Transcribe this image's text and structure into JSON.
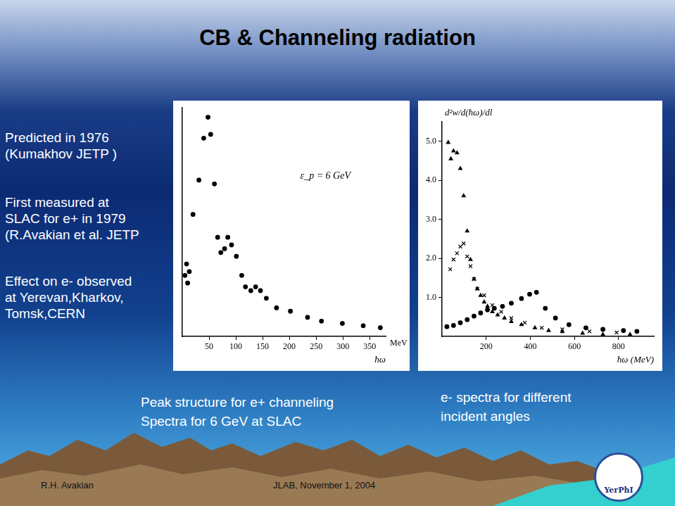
{
  "slide": {
    "title": "CB & Channeling radiation",
    "notes": [
      [
        "Predicted in 1976",
        "(Kumakhov JETP )"
      ],
      [
        "First measured at",
        "SLAC for e+ in 1979",
        "(R.Avakian et al. JETP"
      ],
      [
        "Effect on e- observed",
        "at Yerevan,Kharkov,",
        "Tomsk,CERN"
      ]
    ],
    "captions": [
      [
        "Peak structure for e+ channeling",
        "Spectra for 6 GeV at SLAC"
      ],
      [
        "e- spectra for different",
        "incident angles"
      ]
    ],
    "footer": {
      "author": "R.H. Avakian",
      "event": "JLAB, November 1, 2004",
      "logo": "YerPhI"
    }
  },
  "chart_data": [
    {
      "type": "scatter",
      "xlabel": "ħω",
      "annotations": [
        "ε_p = 6 GeV",
        "MeV"
      ],
      "series": [
        {
          "color": "#000000",
          "marker": "circle",
          "x": [
            5,
            8,
            10,
            13,
            20,
            31,
            40,
            48,
            53,
            60,
            66,
            72,
            79,
            85,
            92,
            101,
            111,
            118,
            128,
            137,
            146,
            157,
            176,
            202,
            234,
            260,
            299,
            338,
            370
          ],
          "values": [
            1.6,
            1.9,
            1.4,
            1.7,
            3.2,
            4.1,
            5.2,
            5.75,
            5.3,
            4.0,
            2.6,
            2.2,
            2.3,
            2.6,
            2.4,
            2.1,
            1.6,
            1.3,
            1.2,
            1.3,
            1.2,
            1.0,
            0.75,
            0.66,
            0.5,
            0.4,
            0.34,
            0.28,
            0.23
          ]
        }
      ],
      "xlim": [
        0,
        380
      ],
      "xticks": [
        50,
        100,
        150,
        200,
        250,
        300,
        350
      ],
      "ylim": [
        0,
        6
      ],
      "tick_labels": "x",
      "grid": false
    },
    {
      "type": "scatter",
      "xlabel": "ħω (MeV)",
      "ylabel": "d²w/d(ħω)/dl",
      "series": [
        {
          "color": "#000000",
          "marker": "triangle",
          "x": [
            28,
            40,
            52,
            68,
            83,
            98,
            114,
            129,
            145,
            160,
            175,
            191,
            206,
            228,
            252,
            283,
            314,
            360,
            421,
            483,
            545,
            637,
            729,
            852
          ],
          "values": [
            4.97,
            4.55,
            4.75,
            4.7,
            4.3,
            3.6,
            2.7,
            1.97,
            1.47,
            1.22,
            1.05,
            0.88,
            0.77,
            0.63,
            0.55,
            0.47,
            0.38,
            0.3,
            0.22,
            0.15,
            0.12,
            0.08,
            0.05,
            0.05
          ]
        },
        {
          "color": "#000000",
          "marker": "cross",
          "x": [
            37,
            52,
            68,
            83,
            98,
            114,
            129,
            145,
            160,
            191,
            228,
            268,
            314,
            375,
            452,
            545,
            668,
            791
          ],
          "values": [
            1.72,
            1.97,
            2.13,
            2.3,
            2.38,
            2.05,
            1.8,
            1.47,
            1.22,
            1.05,
            0.8,
            0.63,
            0.47,
            0.35,
            0.22,
            0.18,
            0.13,
            0.1
          ]
        },
        {
          "color": "#000000",
          "marker": "circle",
          "x": [
            22,
            52,
            83,
            114,
            145,
            175,
            206,
            237,
            274,
            314,
            360,
            397,
            428,
            468,
            514,
            575,
            652,
            729,
            822,
            883
          ],
          "values": [
            0.25,
            0.28,
            0.35,
            0.43,
            0.52,
            0.6,
            0.68,
            0.72,
            0.77,
            0.85,
            0.97,
            1.08,
            1.13,
            0.72,
            0.47,
            0.3,
            0.22,
            0.18,
            0.15,
            0.13
          ]
        }
      ],
      "xlim": [
        0,
        960
      ],
      "xticks": [
        200,
        400,
        600,
        800
      ],
      "ylim": [
        0,
        5.5
      ],
      "yticks": [
        {
          "value": 1,
          "label": "1.0"
        },
        {
          "value": 2,
          "label": "2.0"
        },
        {
          "value": 3,
          "label": "3.0"
        },
        {
          "value": 4,
          "label": "4.0"
        },
        {
          "value": 5,
          "label": "5.0"
        }
      ],
      "grid": false
    }
  ]
}
